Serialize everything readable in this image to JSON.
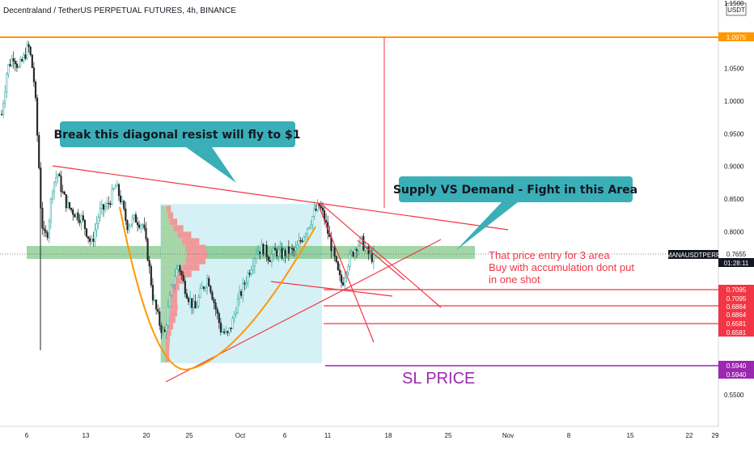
{
  "title": "Decentraland / TetherUS PERPETUAL FUTURES, 4h, BINANCE",
  "symbol": "MANAUSDTPERP",
  "countdown": "01:28:11",
  "currency": "USDT",
  "colors": {
    "up": "#26a69a",
    "down": "#222222",
    "orange": "#ff9800",
    "red": "#f23645",
    "purple": "#9c27b0",
    "green_zone": "#66bb6a",
    "callout": "#3aafb7",
    "box": "#d5f1f5"
  },
  "chart_data": {
    "type": "candlestick",
    "y_axis_ticks": [
      "1.1500",
      "1.0975",
      "1.0500",
      "1.0000",
      "0.9500",
      "0.9000",
      "0.8500",
      "0.8000",
      "0.7655",
      "0.7095",
      "0.7095",
      "0.6864",
      "0.6864",
      "0.6581",
      "0.6581",
      "0.5940",
      "0.5940",
      "0.5500"
    ],
    "axis_ticks": [
      "1.1500",
      "1.0500",
      "1.0000",
      "0.9500",
      "0.9000",
      "0.8500",
      "0.8000",
      "0.5500"
    ],
    "price_labels": [
      {
        "text": "1.0975",
        "value": 1.0975,
        "kind": "orange"
      },
      {
        "text": "0.7655",
        "value": 0.7655,
        "kind": "current"
      },
      {
        "text": "0.7095",
        "value": 0.7095,
        "kind": "red"
      },
      {
        "text": "0.7095",
        "value": 0.7095,
        "kind": "red"
      },
      {
        "text": "0.6864",
        "value": 0.6864,
        "kind": "red"
      },
      {
        "text": "0.6864",
        "value": 0.6864,
        "kind": "red"
      },
      {
        "text": "0.6581",
        "value": 0.6581,
        "kind": "red"
      },
      {
        "text": "0.6581",
        "value": 0.6581,
        "kind": "red"
      },
      {
        "text": "0.5940",
        "value": 0.594,
        "kind": "purple"
      },
      {
        "text": "0.5940",
        "value": 0.594,
        "kind": "purple"
      }
    ],
    "x_axis_labels": [
      "6",
      "13",
      "20",
      "25",
      "Oct",
      "6",
      "11",
      "18",
      "25",
      "Nov",
      "8",
      "15",
      "22",
      "29"
    ],
    "ylim": [
      0.53,
      1.16
    ],
    "horizontal_levels": {
      "resistance": 1.0975,
      "entry_zone": [
        0.758,
        0.778
      ],
      "targets_red": [
        0.7095,
        0.6864,
        0.6581
      ],
      "stop_loss": 0.594
    },
    "close_path": [
      [
        0,
        0.97
      ],
      [
        8,
        1.05
      ],
      [
        16,
        1.07
      ],
      [
        22,
        1.05
      ],
      [
        28,
        1.065
      ],
      [
        34,
        1.085
      ],
      [
        38,
        1.06
      ],
      [
        42,
        1.02
      ],
      [
        48,
        0.88
      ],
      [
        50,
        0.82
      ],
      [
        54,
        0.79
      ],
      [
        58,
        0.8
      ],
      [
        64,
        0.87
      ],
      [
        70,
        0.89
      ],
      [
        76,
        0.86
      ],
      [
        82,
        0.84
      ],
      [
        90,
        0.83
      ],
      [
        100,
        0.82
      ],
      [
        112,
        0.78
      ],
      [
        122,
        0.83
      ],
      [
        132,
        0.84
      ],
      [
        142,
        0.87
      ],
      [
        148,
        0.85
      ],
      [
        156,
        0.81
      ],
      [
        166,
        0.82
      ],
      [
        176,
        0.81
      ],
      [
        182,
        0.76
      ],
      [
        188,
        0.7
      ],
      [
        196,
        0.66
      ],
      [
        202,
        0.64
      ],
      [
        208,
        0.69
      ],
      [
        214,
        0.73
      ],
      [
        220,
        0.75
      ],
      [
        226,
        0.72
      ],
      [
        232,
        0.7
      ],
      [
        240,
        0.68
      ],
      [
        248,
        0.71
      ],
      [
        256,
        0.73
      ],
      [
        264,
        0.69
      ],
      [
        272,
        0.65
      ],
      [
        280,
        0.64
      ],
      [
        286,
        0.66
      ],
      [
        292,
        0.69
      ],
      [
        298,
        0.71
      ],
      [
        304,
        0.73
      ],
      [
        310,
        0.75
      ],
      [
        316,
        0.77
      ],
      [
        324,
        0.775
      ],
      [
        332,
        0.76
      ],
      [
        340,
        0.77
      ],
      [
        348,
        0.765
      ],
      [
        356,
        0.77
      ],
      [
        364,
        0.77
      ],
      [
        372,
        0.79
      ],
      [
        380,
        0.81
      ],
      [
        388,
        0.83
      ],
      [
        394,
        0.84
      ],
      [
        400,
        0.82
      ],
      [
        406,
        0.79
      ],
      [
        412,
        0.76
      ],
      [
        418,
        0.73
      ],
      [
        422,
        0.72
      ],
      [
        428,
        0.75
      ],
      [
        434,
        0.765
      ],
      [
        440,
        0.78
      ],
      [
        446,
        0.785
      ],
      [
        452,
        0.77
      ],
      [
        458,
        0.76
      ],
      [
        462,
        0.765
      ]
    ],
    "volume_profile_range": [
      0.6,
      0.84
    ],
    "annotations": [
      "Break this diagonal resist will fly to $1",
      "Supply VS Demand - Fight in this Area",
      "That price entry for 3 area",
      "Buy with accumulation dont put",
      "in one shot",
      "SL PRICE"
    ]
  },
  "annotations": {
    "callout1": "Break this diagonal resist will fly to $1",
    "callout2": "Supply VS Demand - Fight in this Area",
    "note_line1": "That price entry for 3 area",
    "note_line2": "Buy with accumulation dont put",
    "note_line3": "in one shot",
    "sl_label": "SL PRICE"
  }
}
